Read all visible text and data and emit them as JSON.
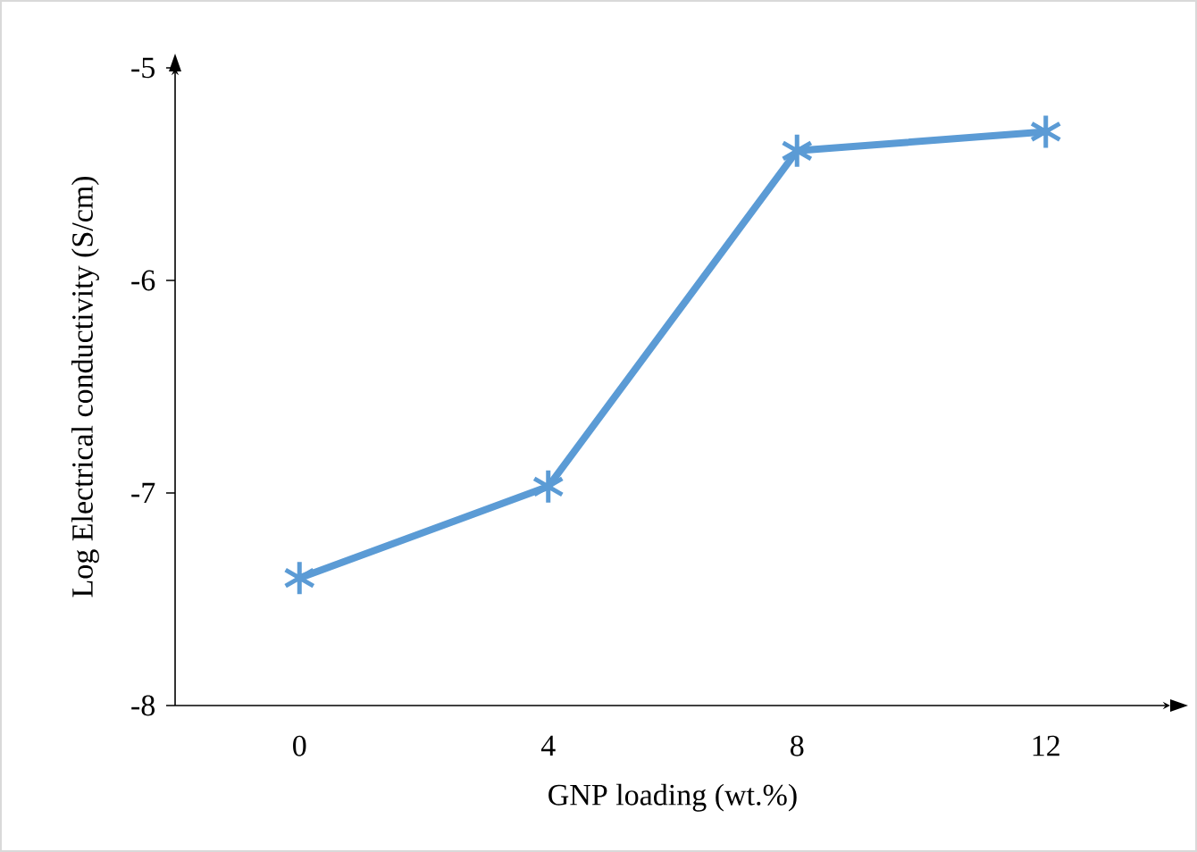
{
  "chart_data": {
    "type": "line",
    "xlabel": "GNP loading (wt.%)",
    "ylabel": "Log Electrical conductivity (S/cm)",
    "categories": [
      "0",
      "4",
      "8",
      "12"
    ],
    "series": [
      {
        "color": "#5b9bd5",
        "values": [
          -7.4,
          -6.97,
          -5.39,
          -5.3
        ]
      }
    ],
    "ylim": [
      -8,
      -5
    ],
    "yticks": [
      -8,
      -7,
      -6,
      -5
    ],
    "grid": false,
    "marker": "cross",
    "line_style": "solid"
  }
}
